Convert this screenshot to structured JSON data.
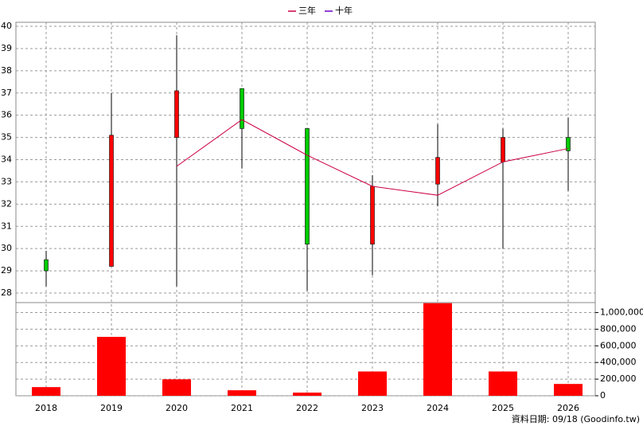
{
  "chart_data": {
    "type": "candlestick",
    "categories": [
      "2018",
      "2019",
      "2020",
      "2021",
      "2022",
      "2023",
      "2024",
      "2025",
      "2026"
    ],
    "open": [
      29.5,
      29.2,
      35.0,
      37.2,
      35.4,
      30.2,
      32.9,
      33.9,
      35.0
    ],
    "high": [
      29.9,
      37.0,
      39.6,
      37.2,
      35.4,
      33.3,
      35.6,
      35.4,
      35.9
    ],
    "low": [
      28.3,
      29.2,
      28.3,
      33.6,
      28.1,
      28.8,
      31.9,
      30.0,
      32.6
    ],
    "close": [
      29.0,
      35.1,
      37.1,
      35.4,
      30.2,
      32.8,
      34.1,
      35.0,
      34.4
    ],
    "up_color": "#ff0000",
    "down_color": "#00cc00",
    "series": [
      {
        "name": "三年",
        "color": "#cc0044",
        "values": [
          null,
          null,
          33.7,
          35.8,
          34.2,
          32.8,
          32.4,
          33.9,
          34.5
        ]
      },
      {
        "name": "十年",
        "color": "#6600cc",
        "values": [
          null,
          null,
          null,
          null,
          null,
          null,
          null,
          null,
          null
        ]
      }
    ],
    "ylim": [
      27.57,
      40.18
    ],
    "yticks": [
      28,
      29,
      30,
      31,
      32,
      33,
      34,
      35,
      36,
      37,
      38,
      39,
      40
    ],
    "grid": true,
    "legend": "top",
    "volume": {
      "type": "bar",
      "color": "#ff0000",
      "values": [
        104000,
        708000,
        198000,
        66000,
        38000,
        292000,
        1113000,
        292000,
        142000
      ],
      "ylim": [
        0,
        1120000
      ],
      "yticks": [
        0,
        {
          "value": 200000,
          "label": "200,000"
        },
        {
          "value": 400000,
          "label": "400,000"
        },
        {
          "value": 600000,
          "label": "600,000"
        },
        {
          "value": 800000,
          "label": "800,000"
        },
        {
          "value": 1000000,
          "label": "1,000,000"
        }
      ]
    },
    "footer": "資料日期: 09/18  (Goodinfo.tw)"
  }
}
